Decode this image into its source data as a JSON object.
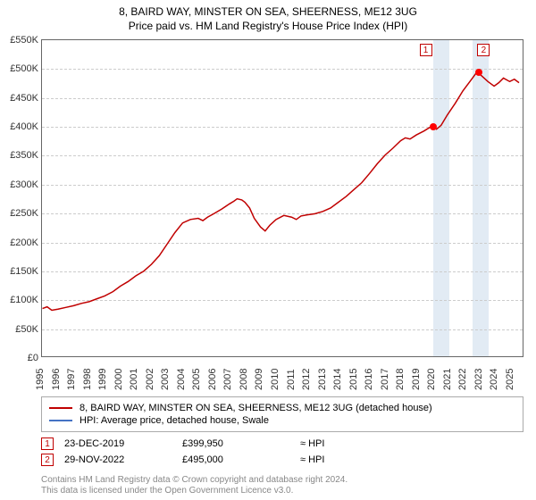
{
  "title": "8, BAIRD WAY, MINSTER ON SEA, SHEERNESS, ME12 3UG",
  "subtitle": "Price paid vs. HM Land Registry's House Price Index (HPI)",
  "chart": {
    "type": "line",
    "background_color": "#ffffff",
    "grid_color": "#cccccc",
    "axis_color": "#666666",
    "shade_color": "#dbe6f1",
    "ylim": [
      0,
      550000
    ],
    "yticks": [
      0,
      50000,
      100000,
      150000,
      200000,
      250000,
      300000,
      350000,
      400000,
      450000,
      500000,
      550000
    ],
    "ytick_labels": [
      "£0",
      "£50K",
      "£100K",
      "£150K",
      "£200K",
      "£250K",
      "£300K",
      "£350K",
      "£400K",
      "£450K",
      "£500K",
      "£550K"
    ],
    "xlim": [
      1995,
      2025.8
    ],
    "xtick_labels": [
      "1995",
      "1996",
      "1997",
      "1998",
      "1999",
      "2000",
      "2001",
      "2002",
      "2003",
      "2004",
      "2005",
      "2006",
      "2007",
      "2008",
      "2009",
      "2010",
      "2011",
      "2012",
      "2013",
      "2014",
      "2015",
      "2016",
      "2017",
      "2018",
      "2019",
      "2020",
      "2021",
      "2022",
      "2023",
      "2024",
      "2025"
    ],
    "shade_ranges": [
      [
        2020,
        2021
      ],
      [
        2022.5,
        2023.5
      ]
    ],
    "series": [
      {
        "name": "property",
        "color": "#c00000",
        "width": 1.5,
        "data": [
          [
            1995,
            83000
          ],
          [
            1995.3,
            86000
          ],
          [
            1995.6,
            80000
          ],
          [
            1996,
            82000
          ],
          [
            1996.5,
            85000
          ],
          [
            1997,
            88000
          ],
          [
            1997.5,
            92000
          ],
          [
            1998,
            95000
          ],
          [
            1998.5,
            100000
          ],
          [
            1999,
            105000
          ],
          [
            1999.5,
            112000
          ],
          [
            2000,
            122000
          ],
          [
            2000.5,
            130000
          ],
          [
            2001,
            140000
          ],
          [
            2001.5,
            148000
          ],
          [
            2002,
            160000
          ],
          [
            2002.5,
            175000
          ],
          [
            2003,
            195000
          ],
          [
            2003.5,
            215000
          ],
          [
            2004,
            232000
          ],
          [
            2004.5,
            238000
          ],
          [
            2005,
            240000
          ],
          [
            2005.3,
            236000
          ],
          [
            2005.6,
            242000
          ],
          [
            2006,
            248000
          ],
          [
            2006.5,
            256000
          ],
          [
            2007,
            265000
          ],
          [
            2007.3,
            270000
          ],
          [
            2007.5,
            274000
          ],
          [
            2007.8,
            272000
          ],
          [
            2008,
            268000
          ],
          [
            2008.3,
            258000
          ],
          [
            2008.6,
            240000
          ],
          [
            2009,
            225000
          ],
          [
            2009.3,
            218000
          ],
          [
            2009.6,
            228000
          ],
          [
            2010,
            238000
          ],
          [
            2010.5,
            245000
          ],
          [
            2011,
            242000
          ],
          [
            2011.3,
            238000
          ],
          [
            2011.6,
            244000
          ],
          [
            2012,
            246000
          ],
          [
            2012.5,
            248000
          ],
          [
            2013,
            252000
          ],
          [
            2013.5,
            258000
          ],
          [
            2014,
            268000
          ],
          [
            2014.5,
            278000
          ],
          [
            2015,
            290000
          ],
          [
            2015.5,
            302000
          ],
          [
            2016,
            318000
          ],
          [
            2016.5,
            335000
          ],
          [
            2017,
            350000
          ],
          [
            2017.5,
            362000
          ],
          [
            2018,
            375000
          ],
          [
            2018.3,
            380000
          ],
          [
            2018.6,
            378000
          ],
          [
            2019,
            385000
          ],
          [
            2019.5,
            392000
          ],
          [
            2019.97,
            399950
          ],
          [
            2020.3,
            395000
          ],
          [
            2020.6,
            402000
          ],
          [
            2021,
            420000
          ],
          [
            2021.5,
            440000
          ],
          [
            2022,
            462000
          ],
          [
            2022.5,
            480000
          ],
          [
            2022.91,
            495000
          ],
          [
            2023.2,
            488000
          ],
          [
            2023.6,
            478000
          ],
          [
            2024,
            470000
          ],
          [
            2024.3,
            476000
          ],
          [
            2024.6,
            484000
          ],
          [
            2025,
            478000
          ],
          [
            2025.3,
            482000
          ],
          [
            2025.6,
            476000
          ]
        ]
      }
    ],
    "markers": [
      {
        "idx": "1",
        "x": 2019.97,
        "y": 399950,
        "label_x": 2019.5,
        "label_y_top": 0
      },
      {
        "idx": "2",
        "x": 2022.91,
        "y": 495000,
        "label_x": 2023.2,
        "label_y_top": 0
      }
    ],
    "marker_box_color": "#c00000",
    "marker_dot_color": "#ff0000"
  },
  "legend": {
    "items": [
      {
        "color": "#c00000",
        "label": "8, BAIRD WAY, MINSTER ON SEA, SHEERNESS, ME12 3UG (detached house)"
      },
      {
        "color": "#4472c4",
        "label": "HPI: Average price, detached house, Swale"
      }
    ]
  },
  "sales": [
    {
      "idx": "1",
      "date": "23-DEC-2019",
      "price": "£399,950",
      "note": "≈ HPI"
    },
    {
      "idx": "2",
      "date": "29-NOV-2022",
      "price": "£495,000",
      "note": "≈ HPI"
    }
  ],
  "footer_line1": "Contains HM Land Registry data © Crown copyright and database right 2024.",
  "footer_line2": "This data is licensed under the Open Government Licence v3.0."
}
